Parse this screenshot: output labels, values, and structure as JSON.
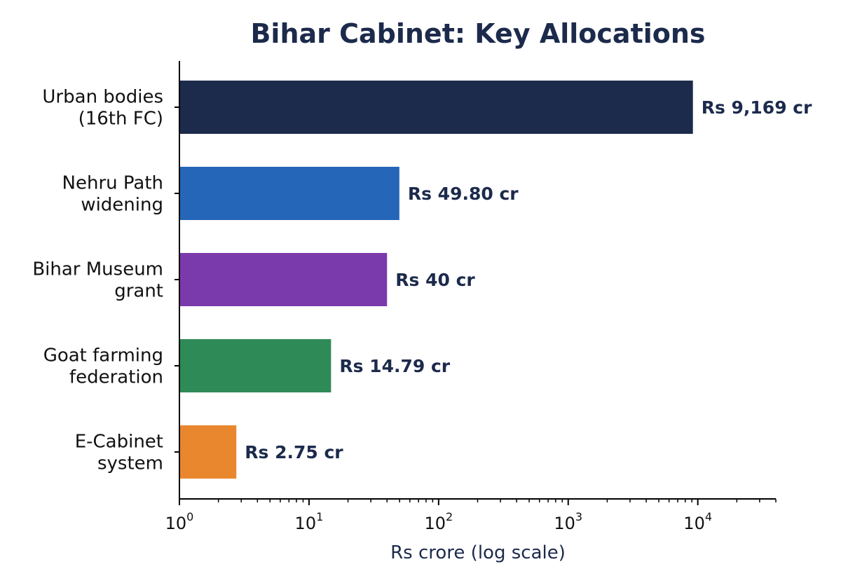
{
  "colors": {
    "text_dark": "#1c2a4b",
    "axis": "#000000"
  },
  "chart_data": {
    "type": "bar",
    "orientation": "horizontal",
    "title": "Bihar Cabinet: Key Allocations",
    "xlabel": "Rs crore (log scale)",
    "ylabel": "",
    "x_scale": "log",
    "xlim": [
      1,
      40000
    ],
    "x_ticks": [
      {
        "value": 1,
        "base": "10",
        "exp": "0"
      },
      {
        "value": 10,
        "base": "10",
        "exp": "1"
      },
      {
        "value": 100,
        "base": "10",
        "exp": "2"
      },
      {
        "value": 1000,
        "base": "10",
        "exp": "3"
      },
      {
        "value": 10000,
        "base": "10",
        "exp": "4"
      }
    ],
    "grid": false,
    "bars": [
      {
        "label_lines": [
          "Urban bodies",
          "(16th FC)"
        ],
        "value": 9169,
        "value_label": "Rs 9,169 cr",
        "color": "#1c2a4b"
      },
      {
        "label_lines": [
          "Nehru Path",
          "widening"
        ],
        "value": 49.8,
        "value_label": "Rs 49.80 cr",
        "color": "#2566b9"
      },
      {
        "label_lines": [
          "Bihar Museum",
          "grant"
        ],
        "value": 40,
        "value_label": "Rs 40 cr",
        "color": "#7b3aab"
      },
      {
        "label_lines": [
          "Goat farming",
          "federation"
        ],
        "value": 14.79,
        "value_label": "Rs 14.79 cr",
        "color": "#2e8b57"
      },
      {
        "label_lines": [
          "E-Cabinet",
          "system"
        ],
        "value": 2.75,
        "value_label": "Rs 2.75 cr",
        "color": "#e8872e"
      }
    ]
  }
}
